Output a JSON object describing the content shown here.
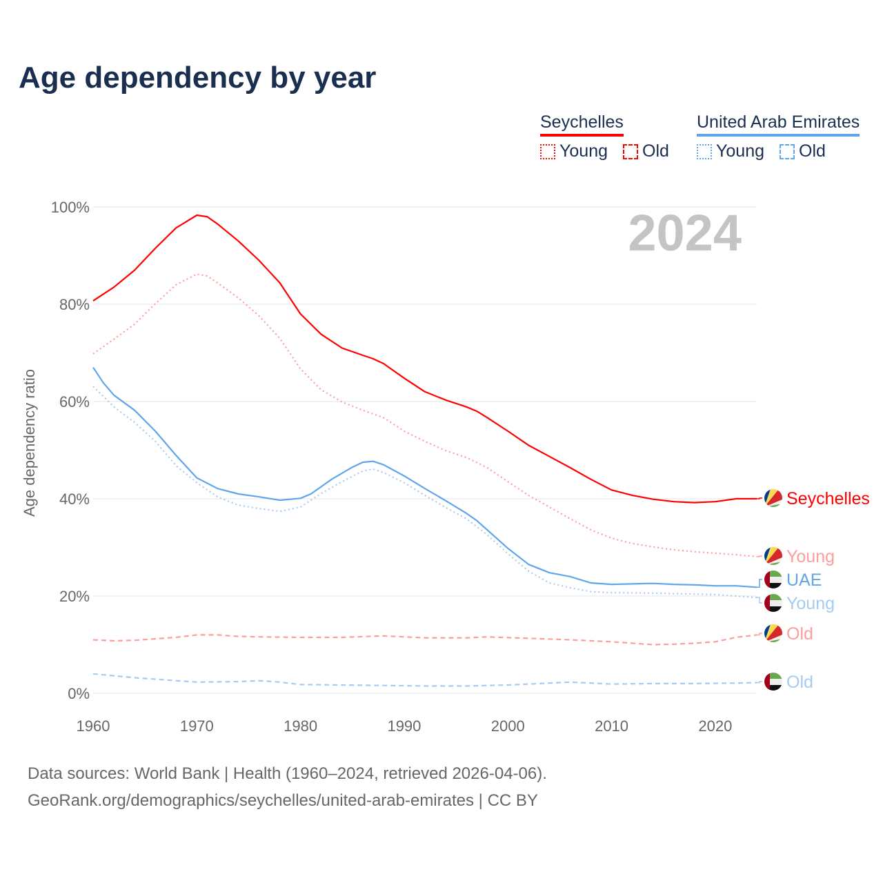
{
  "title": "Age dependency by year",
  "legend": {
    "groups": [
      {
        "name": "Seychelles",
        "color": "#ff0000",
        "young_color": "#ff0000",
        "old_color": "#ff0000",
        "young_label": "Young",
        "old_label": "Old"
      },
      {
        "name": "United Arab Emirates",
        "color": "#5ea5ec",
        "young_color": "#5ea5ec",
        "old_color": "#5ea5ec",
        "young_label": "Young",
        "old_label": "Old"
      }
    ]
  },
  "footer": {
    "line1": "Data sources: World Bank | Health (1960–2024, retrieved 2026-04-06).",
    "line2": "GeoRank.org/demographics/seychelles/united-arab-emirates | CC BY"
  },
  "chart_data": {
    "type": "line",
    "title": "Age dependency by year",
    "ylabel": "Age dependency ratio",
    "xlabel": "",
    "year_watermark": "2024",
    "xlim": [
      1960,
      2024
    ],
    "ylim": [
      0,
      100
    ],
    "xticks": [
      1960,
      1970,
      1980,
      1990,
      2000,
      2010,
      2020
    ],
    "yticks": [
      0,
      20,
      40,
      60,
      80,
      100
    ],
    "ytick_labels": [
      "0%",
      "20%",
      "40%",
      "60%",
      "80%",
      "100%"
    ],
    "grid": true,
    "series": [
      {
        "name": "Seychelles",
        "end_label": "Seychelles",
        "flag": "seychelles",
        "color": "#ff0000",
        "style": "solid",
        "points": [
          [
            1960,
            80.7
          ],
          [
            1962,
            83.5
          ],
          [
            1964,
            87
          ],
          [
            1966,
            91.5
          ],
          [
            1968,
            95.7
          ],
          [
            1970,
            98.3
          ],
          [
            1971,
            98
          ],
          [
            1972,
            96.5
          ],
          [
            1974,
            93
          ],
          [
            1976,
            89
          ],
          [
            1978,
            84.4
          ],
          [
            1980,
            78
          ],
          [
            1982,
            73.8
          ],
          [
            1984,
            71
          ],
          [
            1986,
            69.5
          ],
          [
            1987,
            68.8
          ],
          [
            1988,
            67.8
          ],
          [
            1990,
            64.8
          ],
          [
            1992,
            62
          ],
          [
            1994,
            60.3
          ],
          [
            1996,
            58.9
          ],
          [
            1997,
            58
          ],
          [
            1998,
            56.7
          ],
          [
            2000,
            53.9
          ],
          [
            2002,
            51
          ],
          [
            2004,
            48.7
          ],
          [
            2006,
            46.4
          ],
          [
            2008,
            44
          ],
          [
            2010,
            41.8
          ],
          [
            2012,
            40.7
          ],
          [
            2014,
            39.9
          ],
          [
            2016,
            39.4
          ],
          [
            2018,
            39.2
          ],
          [
            2020,
            39.4
          ],
          [
            2022,
            40
          ],
          [
            2024,
            40
          ]
        ]
      },
      {
        "name": "Seychelles Young",
        "end_label": "Young",
        "flag": "seychelles",
        "color": "#ff9c9c",
        "style": "dotted",
        "points": [
          [
            1960,
            69.8
          ],
          [
            1962,
            72.8
          ],
          [
            1964,
            75.9
          ],
          [
            1966,
            80.1
          ],
          [
            1968,
            84
          ],
          [
            1970,
            86.2
          ],
          [
            1971,
            85.8
          ],
          [
            1972,
            84.4
          ],
          [
            1974,
            81.3
          ],
          [
            1976,
            77.6
          ],
          [
            1978,
            73
          ],
          [
            1980,
            66.7
          ],
          [
            1982,
            62.4
          ],
          [
            1984,
            59.9
          ],
          [
            1986,
            58.2
          ],
          [
            1988,
            56.7
          ],
          [
            1990,
            53.9
          ],
          [
            1992,
            51.8
          ],
          [
            1994,
            49.9
          ],
          [
            1996,
            48.5
          ],
          [
            1998,
            46.4
          ],
          [
            2000,
            43.5
          ],
          [
            2002,
            40.7
          ],
          [
            2004,
            38.3
          ],
          [
            2006,
            35.9
          ],
          [
            2008,
            33.6
          ],
          [
            2010,
            31.9
          ],
          [
            2012,
            30.8
          ],
          [
            2014,
            30.1
          ],
          [
            2016,
            29.5
          ],
          [
            2018,
            29.1
          ],
          [
            2020,
            28.8
          ],
          [
            2022,
            28.5
          ],
          [
            2024,
            28.1
          ]
        ]
      },
      {
        "name": "United Arab Emirates",
        "end_label": "UAE",
        "flag": "uae",
        "color": "#5ea5ec",
        "style": "solid",
        "points": [
          [
            1960,
            67
          ],
          [
            1961,
            63.8
          ],
          [
            1962,
            61.3
          ],
          [
            1964,
            58.2
          ],
          [
            1966,
            53.9
          ],
          [
            1968,
            48.9
          ],
          [
            1970,
            44.3
          ],
          [
            1972,
            42.1
          ],
          [
            1974,
            41
          ],
          [
            1976,
            40.4
          ],
          [
            1978,
            39.7
          ],
          [
            1980,
            40.1
          ],
          [
            1981,
            41
          ],
          [
            1983,
            44
          ],
          [
            1985,
            46.5
          ],
          [
            1986,
            47.5
          ],
          [
            1987,
            47.7
          ],
          [
            1988,
            47
          ],
          [
            1990,
            44.7
          ],
          [
            1992,
            42.1
          ],
          [
            1994,
            39.6
          ],
          [
            1996,
            37
          ],
          [
            1997,
            35.5
          ],
          [
            1998,
            33.6
          ],
          [
            2000,
            29.8
          ],
          [
            2002,
            26.5
          ],
          [
            2004,
            24.8
          ],
          [
            2006,
            24
          ],
          [
            2008,
            22.7
          ],
          [
            2010,
            22.4
          ],
          [
            2012,
            22.5
          ],
          [
            2014,
            22.6
          ],
          [
            2016,
            22.4
          ],
          [
            2018,
            22.3
          ],
          [
            2020,
            22.1
          ],
          [
            2022,
            22.1
          ],
          [
            2024,
            21.8
          ]
        ]
      },
      {
        "name": "United Arab Emirates Young",
        "end_label": "Young",
        "flag": "uae",
        "color": "#a6cbf2",
        "style": "dotted",
        "points": [
          [
            1960,
            63.1
          ],
          [
            1962,
            58.9
          ],
          [
            1964,
            55.7
          ],
          [
            1966,
            51.8
          ],
          [
            1968,
            46.8
          ],
          [
            1970,
            43.3
          ],
          [
            1972,
            40.4
          ],
          [
            1974,
            38.7
          ],
          [
            1976,
            38
          ],
          [
            1978,
            37.4
          ],
          [
            1980,
            38.3
          ],
          [
            1982,
            41.1
          ],
          [
            1984,
            43.5
          ],
          [
            1986,
            45.7
          ],
          [
            1987,
            46.1
          ],
          [
            1988,
            45.4
          ],
          [
            1990,
            43.3
          ],
          [
            1992,
            40.7
          ],
          [
            1994,
            38.2
          ],
          [
            1996,
            35.9
          ],
          [
            1998,
            32.6
          ],
          [
            2000,
            28.7
          ],
          [
            2002,
            25.1
          ],
          [
            2004,
            22.7
          ],
          [
            2006,
            21.7
          ],
          [
            2008,
            20.9
          ],
          [
            2010,
            20.7
          ],
          [
            2014,
            20.6
          ],
          [
            2018,
            20.4
          ],
          [
            2020,
            20.3
          ],
          [
            2022,
            20
          ],
          [
            2024,
            19.7
          ]
        ]
      },
      {
        "name": "Seychelles Old",
        "end_label": "Old",
        "flag": "seychelles",
        "color": "#ff9c9c",
        "style": "dashed",
        "points": [
          [
            1960,
            11
          ],
          [
            1962,
            10.8
          ],
          [
            1964,
            10.9
          ],
          [
            1966,
            11.2
          ],
          [
            1968,
            11.5
          ],
          [
            1970,
            12
          ],
          [
            1972,
            12
          ],
          [
            1974,
            11.7
          ],
          [
            1976,
            11.6
          ],
          [
            1980,
            11.5
          ],
          [
            1984,
            11.5
          ],
          [
            1988,
            11.8
          ],
          [
            1992,
            11.4
          ],
          [
            1996,
            11.4
          ],
          [
            1998,
            11.6
          ],
          [
            2002,
            11.3
          ],
          [
            2006,
            11
          ],
          [
            2010,
            10.6
          ],
          [
            2014,
            10
          ],
          [
            2016,
            10.1
          ],
          [
            2018,
            10.3
          ],
          [
            2020,
            10.6
          ],
          [
            2022,
            11.5
          ],
          [
            2024,
            12
          ]
        ]
      },
      {
        "name": "United Arab Emirates Old",
        "end_label": "Old",
        "flag": "uae",
        "color": "#a6cbf2",
        "style": "dashed",
        "points": [
          [
            1960,
            4
          ],
          [
            1964,
            3.2
          ],
          [
            1968,
            2.6
          ],
          [
            1970,
            2.3
          ],
          [
            1974,
            2.4
          ],
          [
            1976,
            2.6
          ],
          [
            1978,
            2.3
          ],
          [
            1980,
            1.8
          ],
          [
            1984,
            1.7
          ],
          [
            1988,
            1.6
          ],
          [
            1992,
            1.5
          ],
          [
            1996,
            1.5
          ],
          [
            2000,
            1.7
          ],
          [
            2004,
            2.1
          ],
          [
            2006,
            2.3
          ],
          [
            2010,
            1.9
          ],
          [
            2014,
            2
          ],
          [
            2018,
            2
          ],
          [
            2022,
            2.1
          ],
          [
            2024,
            2.2
          ]
        ]
      }
    ]
  }
}
